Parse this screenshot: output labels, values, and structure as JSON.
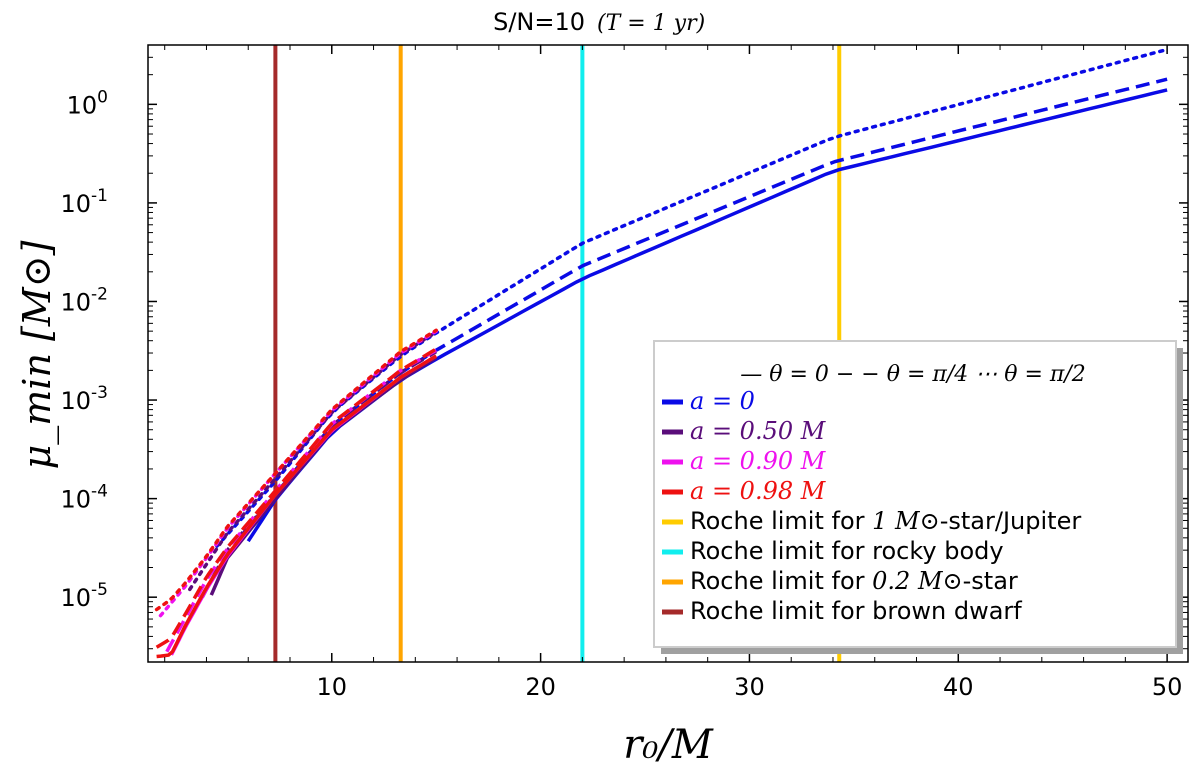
{
  "chart_data": {
    "type": "line",
    "title": "S/N=10",
    "title_suffix": "(T = 1 yr)",
    "xlabel": "r₀/M",
    "ylabel": "μ_min [M⊙]",
    "x_ticks": [
      10,
      20,
      30,
      40,
      50
    ],
    "x_tick_labels": [
      "10",
      "20",
      "30",
      "40",
      "50"
    ],
    "xlim": [
      1.2,
      51
    ],
    "ylim": [
      2.2e-06,
      4.0
    ],
    "yscale": "log",
    "y_ticks": [
      {
        "base": "10",
        "exp": "-5",
        "value": 1e-05
      },
      {
        "base": "10",
        "exp": "-4",
        "value": 0.0001
      },
      {
        "base": "10",
        "exp": "-3",
        "value": 0.001
      },
      {
        "base": "10",
        "exp": "-2",
        "value": 0.01
      },
      {
        "base": "10",
        "exp": "-1",
        "value": 0.1
      },
      {
        "base": "10",
        "exp": "0",
        "value": 1
      }
    ],
    "grid": false,
    "legend_position": "lower-right",
    "legend_header": "— θ = 0  − − θ = π/4  ⋯ θ = π/2",
    "spin_series": [
      {
        "label": "a = 0",
        "color": "#0a0ae6",
        "r_isco": 6.0,
        "r_end": 50,
        "theta_0": [
          [
            6,
            3.7e-05
          ],
          [
            7.3,
            9.8e-05
          ],
          [
            10,
            0.00047
          ],
          [
            13.3,
            0.0016
          ],
          [
            15,
            0.0026
          ],
          [
            22,
            0.017
          ],
          [
            34,
            0.21
          ],
          [
            50,
            1.4
          ]
        ],
        "theta_pi4": [
          [
            5.5,
            3.8e-05
          ],
          [
            7.3,
            0.00011
          ],
          [
            10,
            0.00055
          ],
          [
            13.3,
            0.0019
          ],
          [
            15,
            0.0032
          ],
          [
            22,
            0.023
          ],
          [
            34,
            0.26
          ],
          [
            50,
            1.8
          ]
        ],
        "theta_pi2": [
          [
            4.5,
            3.3e-05
          ],
          [
            7.3,
            0.00015
          ],
          [
            10,
            0.00075
          ],
          [
            13.3,
            0.0028
          ],
          [
            15,
            0.0048
          ],
          [
            22,
            0.039
          ],
          [
            34,
            0.46
          ],
          [
            50,
            3.6
          ]
        ]
      },
      {
        "label": "a = 0.50 M",
        "color": "#5a0d7a",
        "r_isco": 4.23,
        "r_end": 15,
        "theta_0": [
          [
            4.23,
            1.05e-05
          ],
          [
            5,
            2.5e-05
          ],
          [
            7.3,
            0.0001
          ],
          [
            10,
            0.00048
          ],
          [
            13.3,
            0.0016
          ],
          [
            15,
            0.0027
          ]
        ],
        "theta_pi4": [
          [
            3.8,
            1e-05
          ],
          [
            5,
            3e-05
          ],
          [
            7.3,
            0.00011
          ],
          [
            10,
            0.00055
          ],
          [
            13.3,
            0.0019
          ],
          [
            15,
            0.0031
          ]
        ],
        "theta_pi2": [
          [
            3.2,
            1.2e-05
          ],
          [
            5,
            4.5e-05
          ],
          [
            7.3,
            0.00016
          ],
          [
            10,
            0.00075
          ],
          [
            13.3,
            0.0029
          ],
          [
            15,
            0.0049
          ]
        ]
      },
      {
        "label": "a = 0.90 M",
        "color": "#ee11ee",
        "r_isco": 2.32,
        "r_end": 15,
        "theta_0": [
          [
            2.32,
            2.6e-06
          ],
          [
            3,
            5e-06
          ],
          [
            4,
            1.2e-05
          ],
          [
            5,
            2.6e-05
          ],
          [
            7.3,
            0.00011
          ],
          [
            10,
            0.00049
          ],
          [
            13.3,
            0.0017
          ],
          [
            15,
            0.0028
          ]
        ],
        "theta_pi4": [
          [
            2.1,
            2.8e-06
          ],
          [
            3,
            6.2e-06
          ],
          [
            4,
            1.5e-05
          ],
          [
            5,
            3.1e-05
          ],
          [
            7.3,
            0.00012
          ],
          [
            10,
            0.00057
          ],
          [
            13.3,
            0.002
          ],
          [
            15,
            0.0032
          ]
        ],
        "theta_pi2": [
          [
            1.8,
            6.5e-06
          ],
          [
            3,
            1.3e-05
          ],
          [
            4,
            2.5e-05
          ],
          [
            5,
            5e-05
          ],
          [
            7.3,
            0.00018
          ],
          [
            10,
            0.00078
          ],
          [
            13.3,
            0.003
          ],
          [
            15,
            0.005
          ]
        ]
      },
      {
        "label": "a = 0.98 M",
        "color": "#ee1111",
        "r_isco": 1.61,
        "r_end": 15,
        "theta_0": [
          [
            1.61,
            2.5e-06
          ],
          [
            2.3,
            2.6e-06
          ],
          [
            3,
            5.2e-06
          ],
          [
            4,
            1.25e-05
          ],
          [
            5,
            2.7e-05
          ],
          [
            7.3,
            0.00011
          ],
          [
            10,
            0.0005
          ],
          [
            13.3,
            0.0017
          ],
          [
            15,
            0.0028
          ]
        ],
        "theta_pi4": [
          [
            1.61,
            3.1e-06
          ],
          [
            2.3,
            3.8e-06
          ],
          [
            3,
            6.8e-06
          ],
          [
            4,
            1.6e-05
          ],
          [
            5,
            3.2e-05
          ],
          [
            7.3,
            0.00012
          ],
          [
            10,
            0.00058
          ],
          [
            13.3,
            0.002
          ],
          [
            15,
            0.0033
          ]
        ],
        "theta_pi2": [
          [
            1.61,
            7.5e-06
          ],
          [
            2.3,
            9.5e-06
          ],
          [
            3,
            1.4e-05
          ],
          [
            4,
            2.6e-05
          ],
          [
            5,
            5.2e-05
          ],
          [
            7.3,
            0.00018
          ],
          [
            10,
            0.0008
          ],
          [
            13.3,
            0.0031
          ],
          [
            15,
            0.0051
          ]
        ]
      }
    ],
    "roche_limits": [
      {
        "label_pre": "Roche limit for ",
        "label_math": "1 M⊙",
        "label_post": "-star/Jupiter",
        "color": "#ffcc00",
        "x": 34.3
      },
      {
        "label_pre": "Roche limit for rocky body",
        "label_math": "",
        "label_post": "",
        "color": "#11eeee",
        "x": 22.0
      },
      {
        "label_pre": "Roche limit for ",
        "label_math": "0.2 M⊙",
        "label_post": "-star",
        "color": "#ffa500",
        "x": 13.3
      },
      {
        "label_pre": "Roche limit for brown dwarf",
        "label_math": "",
        "label_post": "",
        "color": "#a52a2a",
        "x": 7.3
      }
    ]
  }
}
